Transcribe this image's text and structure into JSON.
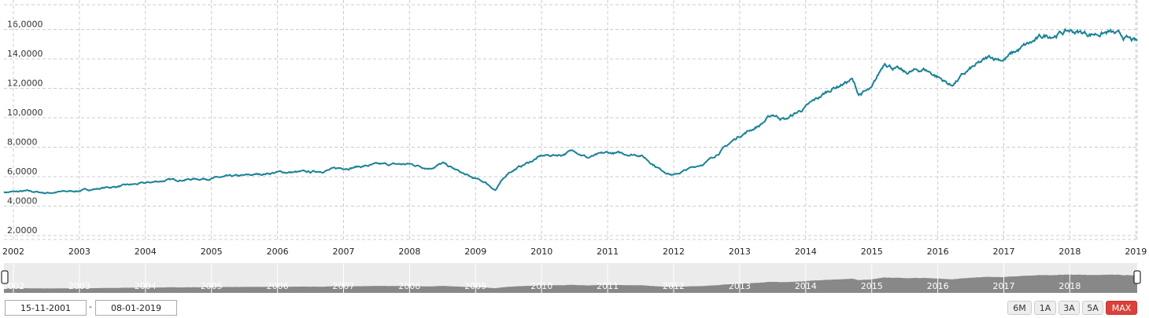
{
  "chart_data": {
    "type": "line",
    "title": "",
    "xlabel": "",
    "ylabel": "",
    "xlim": [
      "2001-11-15",
      "2019-01-08"
    ],
    "ylim": [
      1.7,
      18
    ],
    "grid": true,
    "y_ticks": [
      "2,0000",
      "4,0000",
      "6,0000",
      "8,0000",
      "10,0000",
      "12,0000",
      "14,0000",
      "16,0000"
    ],
    "x_ticks": [
      "2002",
      "2003",
      "2004",
      "2005",
      "2006",
      "2007",
      "2008",
      "2009",
      "2010",
      "2011",
      "2012",
      "2013",
      "2014",
      "2015",
      "2016",
      "2017",
      "2018",
      "2019"
    ],
    "line_color": "#1a8296",
    "x": [
      2001.87,
      2002.2,
      2002.5,
      2003.0,
      2003.5,
      2004.0,
      2004.3,
      2005.0,
      2005.5,
      2006.0,
      2006.5,
      2007.0,
      2007.5,
      2008.0,
      2008.3,
      2008.5,
      2008.9,
      2009.15,
      2009.3,
      2009.5,
      2010.0,
      2010.3,
      2010.5,
      2010.7,
      2011.0,
      2011.5,
      2011.8,
      2012.0,
      2012.5,
      2013.0,
      2013.3,
      2013.5,
      2013.7,
      2014.0,
      2014.4,
      2014.7,
      2014.8,
      2015.0,
      2015.2,
      2015.5,
      2015.8,
      2016.0,
      2016.2,
      2016.5,
      2016.8,
      2017.0,
      2017.3,
      2017.6,
      2018.0,
      2018.3,
      2018.6,
      2018.9,
      2019.02
    ],
    "y": [
      4.95,
      5.0,
      4.9,
      5.05,
      5.3,
      5.55,
      5.75,
      5.9,
      6.05,
      6.3,
      6.3,
      6.6,
      6.8,
      6.85,
      6.6,
      6.9,
      6.0,
      5.6,
      5.1,
      6.3,
      7.4,
      7.5,
      7.8,
      7.3,
      7.6,
      7.5,
      6.5,
      6.1,
      7.0,
      8.8,
      9.5,
      10.2,
      9.9,
      10.7,
      12.0,
      12.6,
      11.6,
      11.9,
      13.8,
      13.0,
      13.3,
      12.8,
      12.2,
      13.3,
      14.1,
      14.0,
      14.8,
      15.5,
      15.9,
      15.7,
      15.8,
      15.3,
      15.1
    ]
  },
  "navigator": {
    "labels": [
      "2002",
      "2003",
      "2004",
      "2005",
      "2006",
      "2007",
      "2008",
      "2009",
      "2010",
      "2011",
      "2012",
      "2013",
      "2014",
      "2015",
      "2016",
      "2017",
      "2018"
    ]
  },
  "range": {
    "from": "15-11-2001",
    "separator": "-",
    "to": "08-01-2019"
  },
  "buttons": [
    {
      "label": "6M",
      "active": false
    },
    {
      "label": "1A",
      "active": false
    },
    {
      "label": "3A",
      "active": false
    },
    {
      "label": "5A",
      "active": false
    },
    {
      "label": "MAX",
      "active": true
    }
  ]
}
